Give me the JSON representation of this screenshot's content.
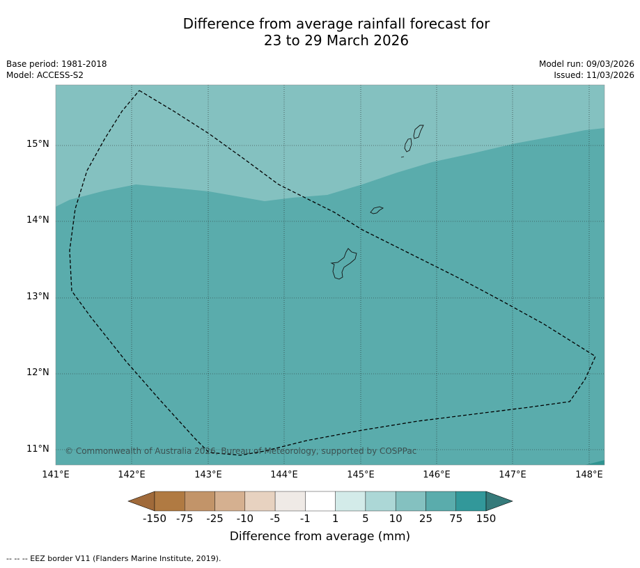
{
  "title": {
    "line1": "Difference from average rainfall forecast for",
    "line2": "23 to 29 March 2026"
  },
  "meta": {
    "base_period": "Base period: 1981-2018",
    "model": "Model: ACCESS-S2",
    "model_run": "Model run: 09/03/2026",
    "issued": "Issued: 11/03/2026"
  },
  "map": {
    "lat_ticks": [
      "15°N",
      "14°N",
      "13°N",
      "12°N",
      "11°N"
    ],
    "lon_ticks": [
      "141°E",
      "142°E",
      "143°E",
      "144°E",
      "145°E",
      "146°E",
      "147°E",
      "148°E"
    ],
    "copyright": "© Commonwealth of Australia 2026, Bureau of Meteorology, supported by COSPPac",
    "colors": {
      "band_10_25": "#84c1c0",
      "band_25_75": "#5aacac",
      "band_75_150": "#2f9491"
    }
  },
  "legend": {
    "labels": [
      "-150",
      "-75",
      "-25",
      "-10",
      "-5",
      "-1",
      "1",
      "5",
      "10",
      "25",
      "75",
      "150"
    ],
    "colors": [
      "#a06a3a",
      "#b07a42",
      "#c29469",
      "#d5b090",
      "#e7d2c0",
      "#efeae6",
      "#ffffff",
      "#d3ebe9",
      "#acd7d6",
      "#84c1c0",
      "#5aacac",
      "#32989a",
      "#357a7a"
    ],
    "title": "Difference from average (mm)"
  },
  "footer": {
    "eez_note": "--  --  -- EEZ border V11 (Flanders Marine Institute, 2019)."
  }
}
